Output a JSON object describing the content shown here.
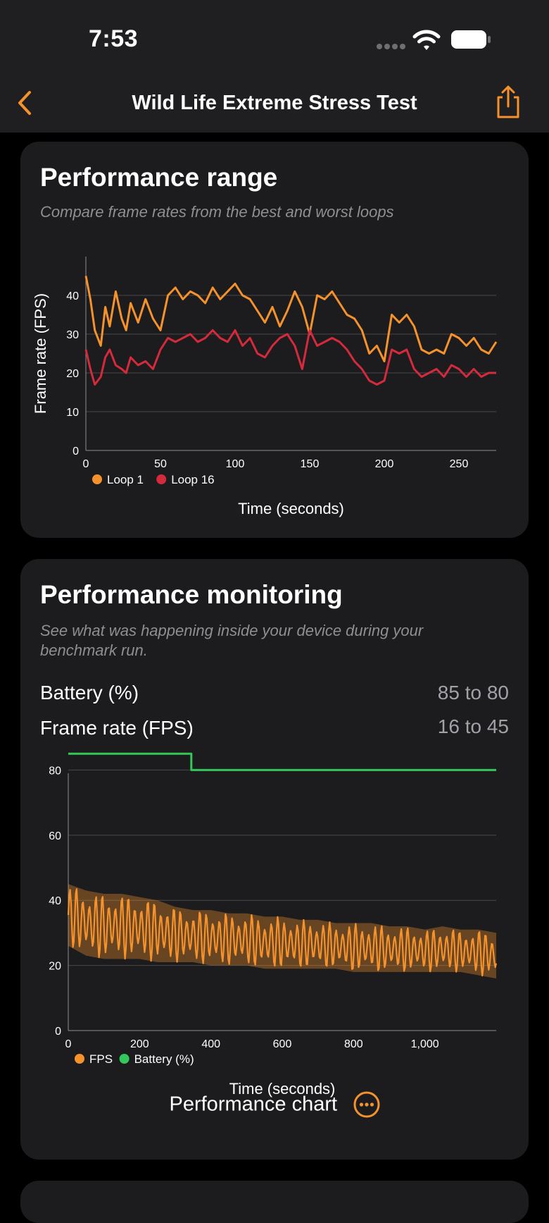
{
  "status": {
    "time": "7:53"
  },
  "nav": {
    "title": "Wild Life Extreme Stress Test"
  },
  "range": {
    "title": "Performance range",
    "subtitle": "Compare frame rates from the best and worst loops"
  },
  "monitoring": {
    "title": "Performance monitoring",
    "subtitle": "See what was happening inside your device during your benchmark run.",
    "stats": [
      {
        "label": "Battery (%)",
        "value": "85 to 80"
      },
      {
        "label": "Frame rate (FPS)",
        "value": "16 to 45"
      }
    ],
    "button_label": "Performance chart"
  },
  "colors": {
    "orange": "#f5922b",
    "red": "#d42a3c",
    "green": "#34c759",
    "accent": "#f5922b"
  },
  "icons": [
    "chevron-left-icon",
    "share-icon",
    "wifi-icon",
    "battery-icon",
    "signal-icon",
    "more-icon"
  ],
  "chart_data": [
    {
      "type": "line",
      "xlabel": "Time (seconds)",
      "ylabel": "Frame rate (FPS)",
      "xlim": [
        0,
        275
      ],
      "ylim": [
        0,
        50
      ],
      "xticks": [
        0,
        50,
        100,
        150,
        200,
        250
      ],
      "yticks": [
        0,
        10,
        20,
        30,
        40
      ],
      "grid": true,
      "legend": "bottom-left",
      "series": [
        {
          "name": "Loop 1",
          "color": "#f5922b",
          "x": [
            0,
            3,
            6,
            10,
            13,
            16,
            20,
            24,
            27,
            30,
            35,
            40,
            45,
            50,
            55,
            60,
            65,
            70,
            75,
            80,
            85,
            90,
            95,
            100,
            105,
            110,
            115,
            120,
            125,
            130,
            135,
            140,
            145,
            150,
            155,
            160,
            165,
            170,
            175,
            180,
            185,
            190,
            195,
            200,
            205,
            210,
            215,
            220,
            225,
            230,
            235,
            240,
            245,
            250,
            255,
            260,
            265,
            270,
            275
          ],
          "y": [
            45,
            39,
            31,
            27,
            37,
            32,
            41,
            34,
            31,
            38,
            33,
            39,
            34,
            31,
            40,
            42,
            39,
            41,
            40,
            38,
            42,
            39,
            41,
            43,
            40,
            39,
            36,
            33,
            37,
            32,
            36,
            41,
            37,
            30,
            40,
            39,
            41,
            38,
            35,
            34,
            31,
            25,
            27,
            23,
            35,
            33,
            35,
            32,
            26,
            25,
            26,
            25,
            30,
            29,
            27,
            29,
            26,
            25,
            28
          ]
        },
        {
          "name": "Loop 16",
          "color": "#d42a3c",
          "x": [
            0,
            3,
            6,
            10,
            13,
            16,
            20,
            24,
            27,
            30,
            35,
            40,
            45,
            50,
            55,
            60,
            65,
            70,
            75,
            80,
            85,
            90,
            95,
            100,
            105,
            110,
            115,
            120,
            125,
            130,
            135,
            140,
            145,
            150,
            155,
            160,
            165,
            170,
            175,
            180,
            185,
            190,
            195,
            200,
            205,
            210,
            215,
            220,
            225,
            230,
            235,
            240,
            245,
            250,
            255,
            260,
            265,
            270,
            275
          ],
          "y": [
            26,
            21,
            17,
            19,
            24,
            26,
            22,
            21,
            20,
            24,
            22,
            23,
            21,
            26,
            29,
            28,
            29,
            30,
            28,
            29,
            31,
            29,
            28,
            31,
            27,
            29,
            25,
            24,
            27,
            29,
            30,
            27,
            21,
            31,
            27,
            28,
            29,
            28,
            26,
            23,
            21,
            18,
            17,
            18,
            26,
            25,
            26,
            21,
            19,
            20,
            21,
            19,
            22,
            21,
            19,
            21,
            19,
            20,
            20
          ]
        }
      ]
    },
    {
      "type": "line",
      "xlabel": "Time (seconds)",
      "ylabel": "",
      "xlim": [
        0,
        1200
      ],
      "ylim": [
        0,
        92
      ],
      "xticks": [
        0,
        200,
        400,
        600,
        800,
        1000
      ],
      "xtick_labels": [
        "0",
        "200",
        "400",
        "600",
        "800",
        "1,000"
      ],
      "yticks": [
        0,
        20,
        40,
        60,
        80
      ],
      "grid": true,
      "legend": "bottom-left",
      "series": [
        {
          "name": "FPS",
          "color": "#f5922b",
          "band": true,
          "x": [
            0,
            50,
            100,
            150,
            200,
            250,
            300,
            350,
            400,
            450,
            500,
            550,
            600,
            650,
            700,
            750,
            800,
            850,
            900,
            950,
            1000,
            1050,
            1100,
            1150,
            1200
          ],
          "high": [
            45,
            43,
            42,
            42,
            41,
            40,
            38,
            37,
            37,
            36,
            36,
            35,
            35,
            34,
            34,
            33,
            33,
            33,
            32,
            32,
            31,
            32,
            31,
            31,
            30
          ],
          "low": [
            26,
            23,
            22,
            22,
            22,
            21,
            21,
            21,
            20,
            20,
            20,
            19,
            19,
            19,
            19,
            19,
            18,
            18,
            18,
            18,
            18,
            18,
            18,
            17,
            16
          ]
        },
        {
          "name": "Battery (%)",
          "color": "#34c759",
          "x": [
            0,
            345,
            345,
            1200
          ],
          "y": [
            85,
            85,
            80,
            80
          ]
        }
      ]
    }
  ]
}
